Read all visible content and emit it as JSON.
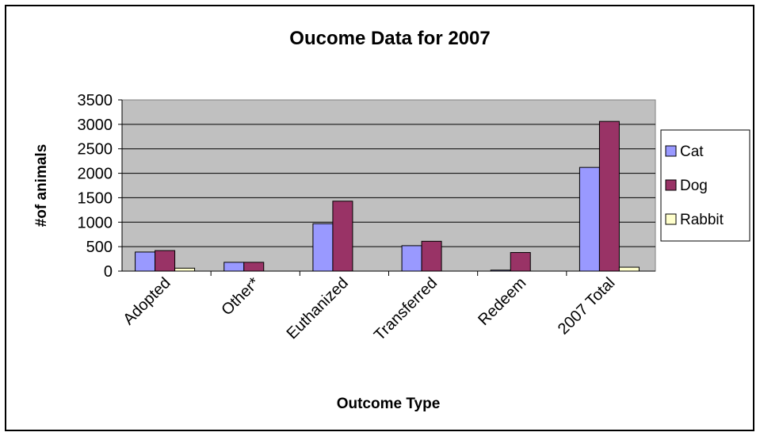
{
  "chart_data": {
    "type": "bar",
    "title": "Oucome Data for 2007",
    "xlabel": "Outcome Type",
    "ylabel": "#of animals",
    "ylim": [
      0,
      3500
    ],
    "ytick_step": 500,
    "yticks": [
      "0",
      "500",
      "1000",
      "1500",
      "2000",
      "2500",
      "3000",
      "3500"
    ],
    "categories": [
      "Adopted",
      "Other*",
      "Euthanized",
      "Transferred",
      "Redeem",
      "2007 Total"
    ],
    "series": [
      {
        "name": "Cat",
        "color": "#9999ff",
        "values": [
          390,
          180,
          970,
          520,
          20,
          2120
        ]
      },
      {
        "name": "Dog",
        "color": "#993366",
        "values": [
          420,
          180,
          1430,
          610,
          380,
          3060
        ]
      },
      {
        "name": "Rabbit",
        "color": "#ffffcc",
        "values": [
          60,
          0,
          0,
          0,
          0,
          80
        ]
      }
    ],
    "grid": true,
    "plot_background": "#c0c0c0",
    "legend_position": "right"
  }
}
